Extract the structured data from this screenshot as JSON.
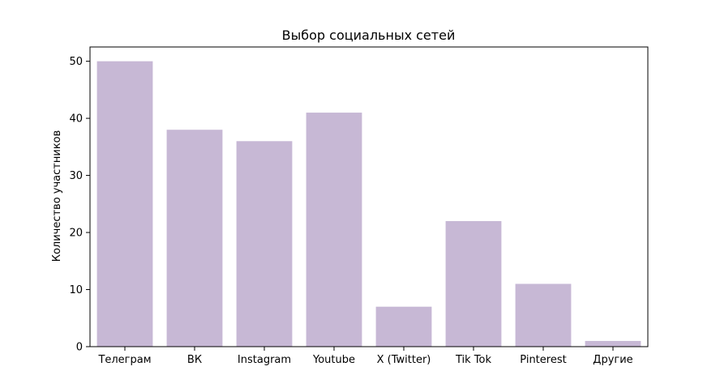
{
  "chart_data": {
    "type": "bar",
    "title": "Выбор социальных сетей",
    "xlabel": "",
    "ylabel": "Количество участников",
    "categories": [
      "Телеграм",
      "ВК",
      "Instagram",
      "Youtube",
      "X (Twitter)",
      "Tik Tok",
      "Pinterest",
      "Другие"
    ],
    "values": [
      50,
      38,
      36,
      41,
      7,
      22,
      11,
      1
    ],
    "ylim": [
      0,
      52.5
    ],
    "yticks": [
      0,
      10,
      20,
      30,
      40,
      50
    ],
    "grid": false,
    "legend": "none",
    "bar_color": "#c7b8d5"
  }
}
